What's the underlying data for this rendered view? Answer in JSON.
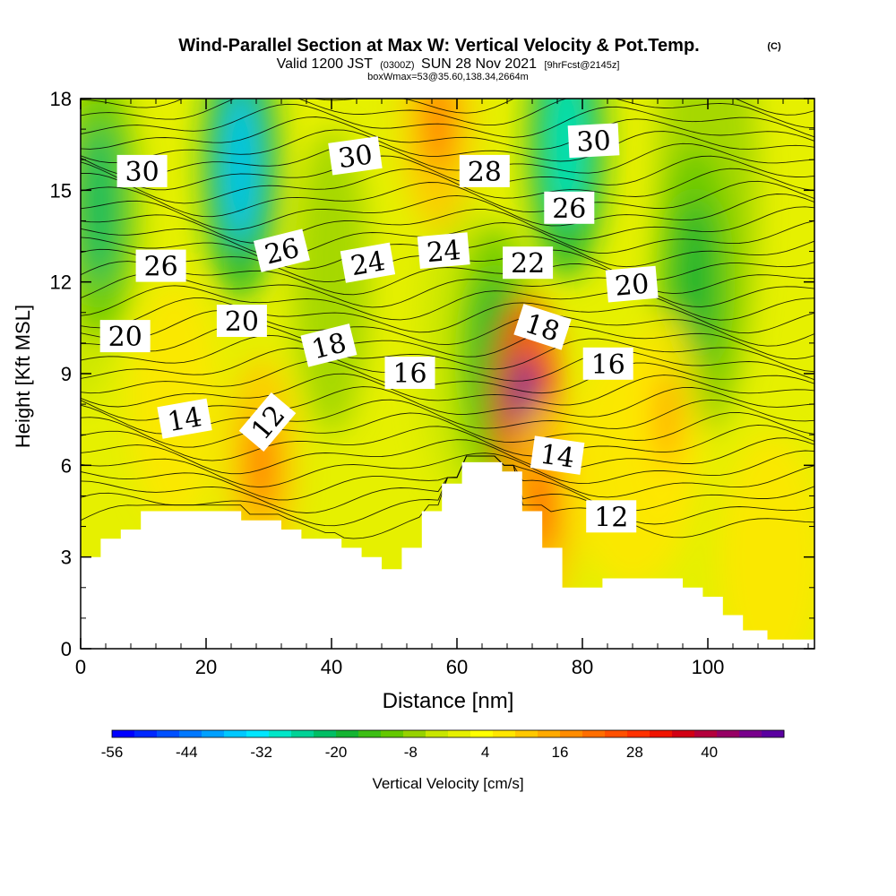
{
  "chart_data": {
    "type": "heatmap",
    "title": "Wind-Parallel Section at Max W: Vertical Velocity & Pot.Temp.",
    "title_mark": "(C)",
    "subtitle_main": "Valid 1200 JST",
    "subtitle_small1": "(0300Z)",
    "subtitle_date": "SUN 28 Nov 2021",
    "subtitle_small2": "[9hrFcst@2145z]",
    "subtitle2": "boxWmax=53@35.60,138.34,2664m",
    "xlabel": "Distance [nm]",
    "ylabel": "Height [Kft MSL]",
    "xlim": [
      0,
      117
    ],
    "ylim": [
      0,
      18
    ],
    "x_ticks": [
      "0",
      "20",
      "40",
      "60",
      "80",
      "100"
    ],
    "x_tick_values": [
      0,
      20,
      40,
      60,
      80,
      100
    ],
    "y_ticks": [
      "0",
      "3",
      "6",
      "9",
      "12",
      "15",
      "18"
    ],
    "y_tick_values": [
      0,
      3,
      6,
      9,
      12,
      15,
      18
    ],
    "colorbar": {
      "label": "Vertical Velocity [cm/s]",
      "tick_labels": [
        "-56",
        "-44",
        "-32",
        "-20",
        "-8",
        "4",
        "16",
        "28",
        "40"
      ],
      "tick_values": [
        -56,
        -44,
        -32,
        -20,
        -8,
        4,
        16,
        28,
        40
      ],
      "range": [
        -56,
        52
      ],
      "colors": [
        "#0000ff",
        "#0028ff",
        "#0050ff",
        "#0078ff",
        "#00a0ff",
        "#00c8ff",
        "#00e6ff",
        "#00e6c8",
        "#00d296",
        "#00be64",
        "#14b432",
        "#3cbe14",
        "#64c800",
        "#96d200",
        "#c8e600",
        "#e6f000",
        "#ffff00",
        "#ffe600",
        "#ffc800",
        "#ffaa00",
        "#ff8c00",
        "#ff6e00",
        "#ff5000",
        "#ff3200",
        "#f01400",
        "#d20014",
        "#b4003c",
        "#960064",
        "#78008c",
        "#5a00a0"
      ]
    },
    "contour_labels": [
      {
        "text": "30",
        "x": 9.8,
        "y": 15.6,
        "rotation": 0
      },
      {
        "text": "30",
        "x": 43.8,
        "y": 16.1,
        "rotation": -8
      },
      {
        "text": "28",
        "x": 64.4,
        "y": 15.6,
        "rotation": 0
      },
      {
        "text": "30",
        "x": 81.8,
        "y": 16.6,
        "rotation": -3
      },
      {
        "text": "26",
        "x": 12.8,
        "y": 12.5,
        "rotation": 0
      },
      {
        "text": "26",
        "x": 32.1,
        "y": 13.0,
        "rotation": -14
      },
      {
        "text": "24",
        "x": 45.8,
        "y": 12.6,
        "rotation": -10
      },
      {
        "text": "24",
        "x": 57.9,
        "y": 13.0,
        "rotation": -5
      },
      {
        "text": "22",
        "x": 71.3,
        "y": 12.6,
        "rotation": 0
      },
      {
        "text": "26",
        "x": 77.9,
        "y": 14.4,
        "rotation": 0
      },
      {
        "text": "20",
        "x": 87.9,
        "y": 11.9,
        "rotation": -5
      },
      {
        "text": "20",
        "x": 7.1,
        "y": 10.2,
        "rotation": 0
      },
      {
        "text": "20",
        "x": 25.7,
        "y": 10.7,
        "rotation": 0
      },
      {
        "text": "18",
        "x": 39.6,
        "y": 9.9,
        "rotation": -14
      },
      {
        "text": "16",
        "x": 52.5,
        "y": 9.0,
        "rotation": 0
      },
      {
        "text": "18",
        "x": 73.6,
        "y": 10.5,
        "rotation": 18
      },
      {
        "text": "16",
        "x": 84.1,
        "y": 9.3,
        "rotation": 0
      },
      {
        "text": "14",
        "x": 16.6,
        "y": 7.5,
        "rotation": -10
      },
      {
        "text": "12",
        "x": 29.9,
        "y": 7.4,
        "rotation": -50
      },
      {
        "text": "14",
        "x": 76.0,
        "y": 6.3,
        "rotation": 8
      },
      {
        "text": "12",
        "x": 84.6,
        "y": 4.3,
        "rotation": 0
      }
    ],
    "terrain_profile": [
      [
        0,
        3
      ],
      [
        3.2,
        3
      ],
      [
        3.2,
        3.6
      ],
      [
        6.4,
        3.6
      ],
      [
        6.4,
        3.9
      ],
      [
        9.6,
        3.9
      ],
      [
        9.6,
        4.5
      ],
      [
        25.6,
        4.5
      ],
      [
        25.6,
        4.2
      ],
      [
        32,
        4.2
      ],
      [
        32,
        3.9
      ],
      [
        35.2,
        3.9
      ],
      [
        35.2,
        3.6
      ],
      [
        41.6,
        3.6
      ],
      [
        41.6,
        3.3
      ],
      [
        44.8,
        3.3
      ],
      [
        44.8,
        3
      ],
      [
        48,
        3
      ],
      [
        48,
        2.6
      ],
      [
        51.2,
        2.6
      ],
      [
        51.2,
        3.3
      ],
      [
        54.4,
        3.3
      ],
      [
        54.4,
        4.5
      ],
      [
        57.6,
        4.5
      ],
      [
        57.6,
        5.4
      ],
      [
        60.8,
        5.4
      ],
      [
        60.8,
        6.1
      ],
      [
        67.2,
        6.1
      ],
      [
        67.2,
        5.8
      ],
      [
        70.4,
        5.8
      ],
      [
        70.4,
        4.5
      ],
      [
        73.6,
        4.5
      ],
      [
        73.6,
        3.3
      ],
      [
        76.8,
        3.3
      ],
      [
        76.8,
        2.0
      ],
      [
        83.2,
        2.0
      ],
      [
        83.2,
        2.3
      ],
      [
        96,
        2.3
      ],
      [
        96,
        2.0
      ],
      [
        99.2,
        2.0
      ],
      [
        99.2,
        1.7
      ],
      [
        102.4,
        1.7
      ],
      [
        102.4,
        1.1
      ],
      [
        105.6,
        1.1
      ],
      [
        105.6,
        0.6
      ],
      [
        109.5,
        0.6
      ],
      [
        109.5,
        0.3
      ],
      [
        117,
        0.3
      ]
    ],
    "updraft_cores": [
      {
        "x": 71,
        "y": 8.0,
        "value": 53
      },
      {
        "x": 28.8,
        "y": 6.0,
        "value": 22
      },
      {
        "x": 57,
        "y": 17.2,
        "value": 20
      },
      {
        "x": 93.5,
        "y": 7.5,
        "value": 14
      },
      {
        "x": 73.5,
        "y": 4.6,
        "value": 24
      }
    ],
    "downdraft_cores": [
      {
        "x": 25.5,
        "y": 15.8,
        "value": -36
      },
      {
        "x": 77.5,
        "y": 16.5,
        "value": -30
      },
      {
        "x": 3,
        "y": 14.5,
        "value": -22
      },
      {
        "x": 98,
        "y": 12.0,
        "value": -20
      },
      {
        "x": 66,
        "y": 9.5,
        "value": -18
      }
    ]
  }
}
